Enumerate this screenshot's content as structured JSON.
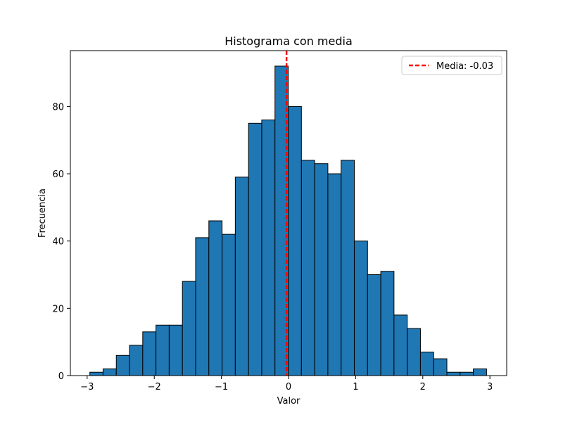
{
  "chart_data": {
    "type": "bar",
    "title": "Histograma con media",
    "xlabel": "Valor",
    "ylabel": "Frecuencia",
    "bin_start": -2.96,
    "bin_width": 0.197,
    "values": [
      1,
      2,
      6,
      9,
      13,
      15,
      15,
      28,
      41,
      46,
      42,
      59,
      75,
      76,
      92,
      80,
      64,
      63,
      60,
      64,
      40,
      30,
      31,
      18,
      14,
      7,
      5,
      1,
      1,
      2
    ],
    "xlim": [
      -3.25,
      3.25
    ],
    "ylim": [
      0,
      96.6
    ],
    "xticks": [
      -3,
      -2,
      -1,
      0,
      1,
      2,
      3
    ],
    "xtick_labels": [
      "−3",
      "−2",
      "−1",
      "0",
      "1",
      "2",
      "3"
    ],
    "yticks": [
      0,
      20,
      40,
      60,
      80
    ],
    "ytick_labels": [
      "0",
      "20",
      "40",
      "60",
      "80"
    ],
    "bar_color": "#1f77b4",
    "bar_edge_color": "#000000",
    "grid": false,
    "mean_line": {
      "value": -0.03,
      "label": "Media: -0.03",
      "color": "#ff0000",
      "style": "dashed"
    },
    "legend": {
      "position": "top-right",
      "entries": [
        "Media: -0.03"
      ]
    }
  }
}
